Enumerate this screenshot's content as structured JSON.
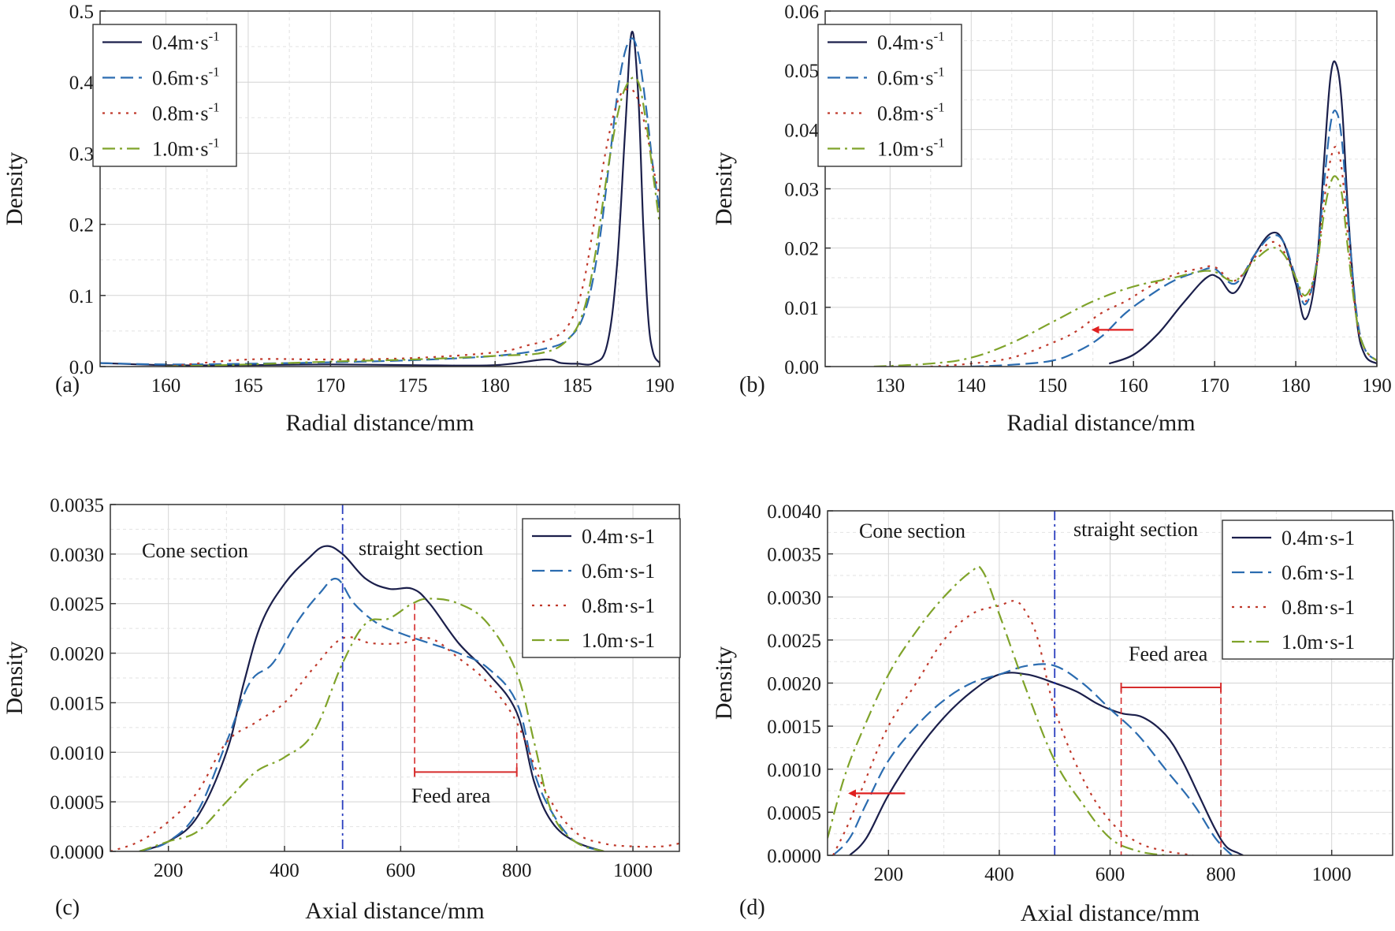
{
  "chart_data": [
    {
      "panel_label": "(a)",
      "type": "line",
      "xlabel": "Radial distance/mm",
      "ylabel": "Density",
      "xlim": [
        156,
        190
      ],
      "ylim": [
        0,
        0.5
      ],
      "xticks": [
        160,
        165,
        170,
        175,
        180,
        185,
        190
      ],
      "yticks": [
        0.0,
        0.1,
        0.2,
        0.3,
        0.4,
        0.5
      ],
      "ytick_labels": [
        "0.0",
        "0.1",
        "0.2",
        "0.3",
        "0.4",
        "0.5"
      ],
      "grid": true,
      "legend_position": "top-left",
      "legend_unit": [
        "m·s",
        "-1"
      ],
      "series": [
        {
          "name": "0.4",
          "color": "#1b1f4b",
          "dash": "solid",
          "x": [
            156,
            160,
            165,
            170,
            175,
            180,
            183,
            184,
            185,
            186,
            186.8,
            187.4,
            187.9,
            188.3,
            188.7,
            189.0,
            189.3,
            189.6,
            190
          ],
          "y": [
            0.005,
            0.002,
            0.002,
            0.003,
            0.002,
            0.002,
            0.01,
            0.005,
            0.004,
            0.005,
            0.03,
            0.14,
            0.33,
            0.47,
            0.38,
            0.2,
            0.07,
            0.02,
            0.005
          ]
        },
        {
          "name": "0.6",
          "color": "#2b6cb0",
          "dash": "dashed",
          "x": [
            156,
            160,
            165,
            170,
            175,
            180,
            183,
            184.5,
            185.5,
            186.3,
            187,
            187.6,
            188.2,
            188.7,
            189.2,
            189.6,
            190
          ],
          "y": [
            0.005,
            0.003,
            0.004,
            0.006,
            0.009,
            0.015,
            0.025,
            0.04,
            0.08,
            0.17,
            0.3,
            0.41,
            0.46,
            0.44,
            0.36,
            0.28,
            0.22
          ]
        },
        {
          "name": "0.8",
          "color": "#c0392b",
          "dash": "dotted",
          "x": [
            160,
            165,
            170,
            175,
            180,
            182,
            183.5,
            184.5,
            185.3,
            186,
            186.7,
            187.4,
            188,
            188.6,
            189.2,
            189.6,
            190
          ],
          "y": [
            0.0,
            0.01,
            0.01,
            0.012,
            0.02,
            0.03,
            0.04,
            0.06,
            0.11,
            0.2,
            0.3,
            0.37,
            0.39,
            0.38,
            0.33,
            0.28,
            0.24
          ]
        },
        {
          "name": "1.0",
          "color": "#7fa32a",
          "dash": "dashdot",
          "x": [
            160,
            165,
            170,
            175,
            180,
            183,
            184.5,
            185.4,
            186.1,
            186.8,
            187.5,
            188.1,
            188.7,
            189.2,
            189.6,
            190
          ],
          "y": [
            0.0,
            0.003,
            0.007,
            0.01,
            0.015,
            0.02,
            0.04,
            0.08,
            0.16,
            0.27,
            0.36,
            0.4,
            0.4,
            0.34,
            0.27,
            0.2
          ]
        }
      ]
    },
    {
      "panel_label": "(b)",
      "type": "line",
      "xlabel": "Radial distance/mm",
      "ylabel": "Density",
      "xlim": [
        122,
        190
      ],
      "ylim": [
        0,
        0.06
      ],
      "xticks": [
        130,
        140,
        150,
        160,
        170,
        180,
        190
      ],
      "yticks": [
        0.0,
        0.01,
        0.02,
        0.03,
        0.04,
        0.05,
        0.06
      ],
      "ytick_labels": [
        "0.00",
        "0.01",
        "0.02",
        "0.03",
        "0.04",
        "0.05",
        "0.06"
      ],
      "grid": true,
      "legend_position": "top-left",
      "legend_unit": [
        "m·s",
        "-1"
      ],
      "series": [
        {
          "name": "0.4",
          "color": "#1b1f4b",
          "dash": "solid",
          "x": [
            157,
            160,
            163,
            166,
            169,
            170.5,
            172.5,
            175,
            177,
            178.5,
            180,
            181.2,
            182.5,
            183.5,
            184.3,
            185,
            185.7,
            186.5,
            187.5,
            188.5,
            190
          ],
          "y": [
            0.0005,
            0.002,
            0.0055,
            0.0105,
            0.015,
            0.015,
            0.0125,
            0.019,
            0.0225,
            0.021,
            0.014,
            0.008,
            0.016,
            0.035,
            0.049,
            0.051,
            0.044,
            0.025,
            0.008,
            0.002,
            0.0005
          ]
        },
        {
          "name": "0.6",
          "color": "#2b6cb0",
          "dash": "dashed",
          "x": [
            140,
            145,
            150,
            153,
            156,
            159,
            162,
            165,
            168,
            170,
            172.5,
            175,
            177,
            178.5,
            180,
            181.2,
            182.5,
            183.5,
            184.3,
            185,
            185.7,
            186.5,
            187.5,
            188.5,
            190
          ],
          "y": [
            0.0,
            0.0003,
            0.001,
            0.0025,
            0.005,
            0.009,
            0.012,
            0.0145,
            0.016,
            0.0165,
            0.014,
            0.019,
            0.022,
            0.021,
            0.015,
            0.0105,
            0.017,
            0.031,
            0.041,
            0.043,
            0.038,
            0.024,
            0.009,
            0.003,
            0.001
          ]
        },
        {
          "name": "0.8",
          "color": "#c0392b",
          "dash": "dotted",
          "x": [
            135,
            140,
            145,
            150,
            153,
            156,
            159,
            162,
            165,
            168,
            170,
            172.5,
            175,
            177,
            178.5,
            180,
            181.2,
            182.5,
            183.5,
            184.3,
            185,
            185.7,
            186.5,
            187.5,
            188.5,
            190
          ],
          "y": [
            0.0,
            0.0005,
            0.0015,
            0.004,
            0.006,
            0.009,
            0.011,
            0.0135,
            0.0155,
            0.0165,
            0.0168,
            0.0145,
            0.0185,
            0.021,
            0.0195,
            0.015,
            0.011,
            0.0165,
            0.028,
            0.035,
            0.037,
            0.033,
            0.021,
            0.008,
            0.003,
            0.001
          ]
        },
        {
          "name": "1.0",
          "color": "#7fa32a",
          "dash": "dashdot",
          "x": [
            128,
            135,
            140,
            145,
            150,
            155,
            160,
            165,
            168,
            170,
            172.5,
            175,
            177,
            178.5,
            180,
            181.2,
            182.5,
            183.5,
            184.3,
            185,
            185.7,
            186.5,
            187.5,
            188.5,
            190
          ],
          "y": [
            0.0,
            0.0005,
            0.0015,
            0.004,
            0.0075,
            0.011,
            0.0135,
            0.015,
            0.016,
            0.016,
            0.0145,
            0.018,
            0.02,
            0.019,
            0.015,
            0.012,
            0.0165,
            0.026,
            0.031,
            0.032,
            0.029,
            0.019,
            0.008,
            0.003,
            0.001
          ]
        }
      ],
      "annotations": {
        "arrow": {
          "x_from": 160,
          "x_to": 155,
          "y": 0.0062
        }
      }
    },
    {
      "panel_label": "(c)",
      "type": "line",
      "xlabel": "Axial distance/mm",
      "ylabel": "Density",
      "xlim": [
        100,
        1080
      ],
      "ylim": [
        0,
        0.0035
      ],
      "xticks": [
        200,
        400,
        600,
        800,
        1000
      ],
      "yticks": [
        0.0,
        0.0005,
        0.001,
        0.0015,
        0.002,
        0.0025,
        0.003,
        0.0035
      ],
      "ytick_labels": [
        "0.0000",
        "0.0005",
        "0.0010",
        "0.0015",
        "0.0020",
        "0.0025",
        "0.0030",
        "0.0035"
      ],
      "grid": true,
      "legend_position": "top-right",
      "legend_unit": [
        "m·s-1"
      ],
      "section_divider_x": 500,
      "section_labels": [
        "Cone section",
        "straight section"
      ],
      "feed_area": {
        "label": "Feed area",
        "x_start": 620,
        "x_end": 800,
        "y_bracket": 0.0008
      },
      "series": [
        {
          "name": "0.4",
          "color": "#1b1f4b",
          "dash": "solid",
          "x": [
            150,
            200,
            250,
            300,
            330,
            360,
            400,
            440,
            470,
            500,
            540,
            580,
            620,
            650,
            700,
            750,
            800,
            830,
            860,
            900,
            950
          ],
          "y": [
            0.0,
            0.0001,
            0.00035,
            0.001,
            0.0017,
            0.0023,
            0.0027,
            0.00295,
            0.00308,
            0.003,
            0.00275,
            0.00265,
            0.00265,
            0.0025,
            0.0021,
            0.0018,
            0.0014,
            0.0007,
            0.0003,
            0.0001,
            0.0
          ]
        },
        {
          "name": "0.6",
          "color": "#2b6cb0",
          "dash": "dashed",
          "x": [
            150,
            200,
            250,
            300,
            340,
            380,
            420,
            460,
            490,
            520,
            560,
            600,
            650,
            700,
            750,
            800,
            830,
            860,
            900,
            950
          ],
          "y": [
            0.0,
            0.0001,
            0.0004,
            0.0011,
            0.0017,
            0.0019,
            0.0023,
            0.0026,
            0.00275,
            0.0025,
            0.0023,
            0.0022,
            0.0021,
            0.002,
            0.00185,
            0.0015,
            0.0008,
            0.0004,
            0.0001,
            0.0
          ]
        },
        {
          "name": "0.8",
          "color": "#c0392b",
          "dash": "dotted",
          "x": [
            100,
            150,
            200,
            250,
            300,
            350,
            400,
            450,
            500,
            550,
            600,
            650,
            700,
            750,
            800,
            850,
            900,
            950,
            1000,
            1050,
            1080
          ],
          "y": [
            0.0,
            0.0001,
            0.0003,
            0.0006,
            0.0011,
            0.0013,
            0.0015,
            0.00185,
            0.00215,
            0.0021,
            0.0021,
            0.00215,
            0.00195,
            0.0017,
            0.0013,
            0.0006,
            0.0002,
            8e-05,
            5e-05,
            5e-05,
            8e-05
          ]
        },
        {
          "name": "1.0",
          "color": "#7fa32a",
          "dash": "dashdot",
          "x": [
            150,
            200,
            250,
            300,
            350,
            400,
            450,
            500,
            540,
            580,
            620,
            650,
            700,
            750,
            800,
            830,
            860,
            900,
            950
          ],
          "y": [
            0.0,
            0.0001,
            0.0002,
            0.0005,
            0.0008,
            0.00095,
            0.0012,
            0.0019,
            0.0023,
            0.00235,
            0.0025,
            0.00255,
            0.0025,
            0.0023,
            0.0018,
            0.0011,
            0.0004,
            0.0001,
            0.0
          ]
        }
      ]
    },
    {
      "panel_label": "(d)",
      "type": "line",
      "xlabel": "Axial distance/mm",
      "ylabel": "Density",
      "xlim": [
        90,
        1110
      ],
      "ylim": [
        0,
        0.004
      ],
      "xticks": [
        200,
        400,
        600,
        800,
        1000
      ],
      "yticks": [
        0.0,
        0.0005,
        0.001,
        0.0015,
        0.002,
        0.0025,
        0.003,
        0.0035,
        0.004
      ],
      "ytick_labels": [
        "0.0000",
        "0.0005",
        "0.0010",
        "0.0015",
        "0.0020",
        "0.0025",
        "0.0030",
        "0.0035",
        "0.0040"
      ],
      "grid": true,
      "legend_position": "top-right",
      "legend_unit": [
        "m·s-1"
      ],
      "section_divider_x": 500,
      "section_labels": [
        "Cone section",
        "straight section"
      ],
      "feed_area": {
        "label": "Feed area",
        "x_start": 620,
        "x_end": 800,
        "y_bracket": 0.00195
      },
      "series": [
        {
          "name": "0.4",
          "color": "#1b1f4b",
          "dash": "solid",
          "x": [
            130,
            160,
            200,
            250,
            300,
            350,
            400,
            450,
            500,
            540,
            580,
            620,
            660,
            700,
            730,
            760,
            790,
            810,
            830,
            840
          ],
          "y": [
            0.0,
            0.0002,
            0.0007,
            0.0012,
            0.0016,
            0.0019,
            0.0021,
            0.0021,
            0.002,
            0.0019,
            0.00175,
            0.00165,
            0.0016,
            0.0014,
            0.0011,
            0.0007,
            0.0003,
            0.0001,
            3e-05,
            0.0
          ]
        },
        {
          "name": "0.6",
          "color": "#2b6cb0",
          "dash": "dashed",
          "x": [
            100,
            130,
            160,
            200,
            250,
            300,
            350,
            400,
            450,
            500,
            550,
            600,
            650,
            700,
            750,
            790,
            820
          ],
          "y": [
            0.0,
            0.0002,
            0.0006,
            0.0011,
            0.0015,
            0.0018,
            0.002,
            0.0021,
            0.0022,
            0.0022,
            0.002,
            0.0017,
            0.0014,
            0.001,
            0.0006,
            0.0002,
            0.0
          ]
        },
        {
          "name": "0.8",
          "color": "#c0392b",
          "dash": "dotted",
          "x": [
            100,
            130,
            160,
            200,
            250,
            300,
            350,
            400,
            430,
            450,
            470,
            500,
            550,
            600,
            650,
            700,
            750
          ],
          "y": [
            0.0,
            0.0004,
            0.0009,
            0.0015,
            0.002,
            0.0025,
            0.0028,
            0.0029,
            0.00295,
            0.0028,
            0.0025,
            0.0017,
            0.0009,
            0.0004,
            0.00015,
            5e-05,
            0.0
          ]
        },
        {
          "name": "1.0",
          "color": "#7fa32a",
          "dash": "dashdot",
          "x": [
            90,
            120,
            150,
            200,
            250,
            300,
            350,
            370,
            400,
            450,
            500,
            550,
            600,
            650,
            700
          ],
          "y": [
            0.0002,
            0.0009,
            0.0014,
            0.0021,
            0.0026,
            0.003,
            0.0033,
            0.0033,
            0.0028,
            0.0019,
            0.0011,
            0.0006,
            0.0002,
            5e-05,
            0.0
          ]
        }
      ],
      "annotations": {
        "arrow": {
          "x_from": 230,
          "x_to": 130,
          "y": 0.00072
        }
      }
    }
  ]
}
